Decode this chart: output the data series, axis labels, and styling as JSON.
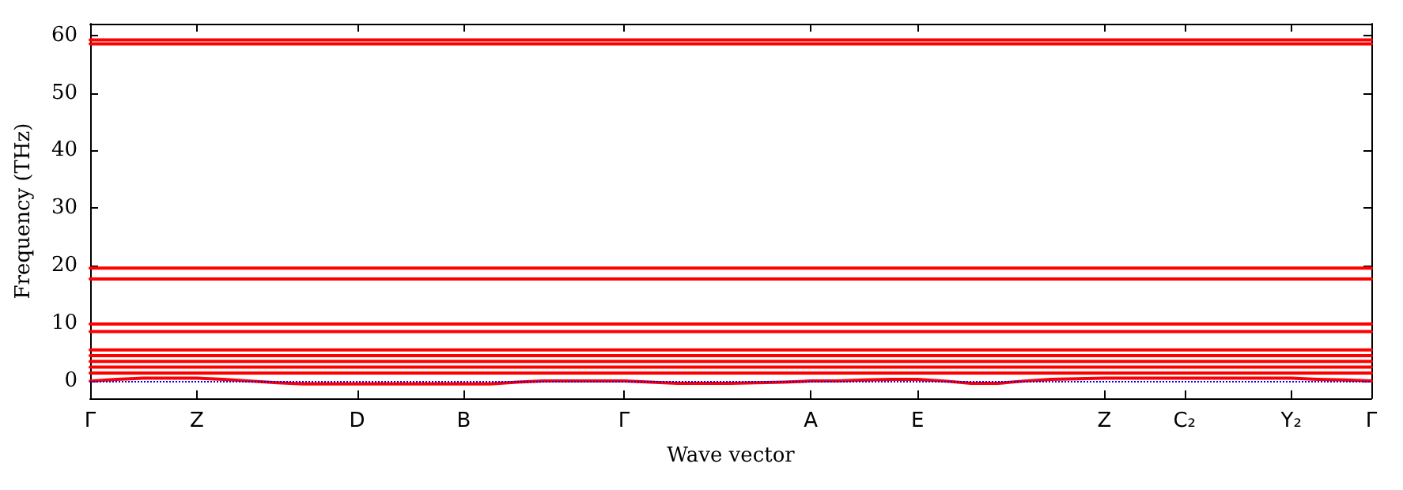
{
  "chart_data": {
    "type": "line",
    "xlabel": "Wave vector",
    "ylabel": "Frequency (THz)",
    "categories": [
      "Γ",
      null,
      null,
      null,
      "Z",
      null,
      null,
      null,
      null,
      null,
      "D",
      null,
      null,
      null,
      "B",
      null,
      null,
      null,
      null,
      null,
      "Γ",
      null,
      null,
      null,
      null,
      null,
      null,
      "A",
      null,
      null,
      null,
      "E",
      null,
      null,
      null,
      null,
      null,
      null,
      "Z",
      null,
      null,
      "C₂",
      null,
      null,
      null,
      "Y₂",
      null,
      null,
      "Γ"
    ],
    "ylim": [
      -3,
      62
    ],
    "yticks": [
      0,
      10,
      20,
      30,
      40,
      50,
      60
    ],
    "marker": "none",
    "line_style": "solid",
    "grid": false,
    "ref_lines": [
      {
        "axis": "y",
        "value": 0,
        "color": "#0000ff",
        "line_style": "dotted"
      }
    ],
    "series": [
      {
        "color": "#ff0000",
        "values": [
          58.5,
          58.5,
          58.5,
          58.5,
          58.5,
          58.5,
          58.5,
          58.5,
          58.5,
          58.5,
          58.5,
          58.5,
          58.5,
          58.5,
          58.5,
          58.5,
          58.5,
          58.5,
          58.5,
          58.5,
          58.5,
          58.5,
          58.5,
          58.5,
          58.5,
          58.5,
          58.5,
          58.5,
          58.5,
          58.5,
          58.5,
          58.5,
          58.5,
          58.5,
          58.5,
          58.5,
          58.5,
          58.5,
          58.5,
          58.5,
          58.5,
          58.5,
          58.5,
          58.5,
          58.5,
          58.5,
          58.5,
          58.5,
          58.5
        ]
      },
      {
        "color": "#ff0000",
        "values": [
          59.2,
          59.2,
          59.2,
          59.2,
          59.2,
          59.2,
          59.2,
          59.2,
          59.2,
          59.2,
          59.2,
          59.2,
          59.2,
          59.2,
          59.2,
          59.2,
          59.2,
          59.2,
          59.2,
          59.2,
          59.2,
          59.2,
          59.2,
          59.2,
          59.2,
          59.2,
          59.2,
          59.2,
          59.2,
          59.2,
          59.2,
          59.2,
          59.2,
          59.2,
          59.2,
          59.2,
          59.2,
          59.2,
          59.2,
          59.2,
          59.2,
          59.2,
          59.2,
          59.2,
          59.2,
          59.2,
          59.2,
          59.2,
          59.2
        ]
      },
      {
        "color": "#ff0000",
        "values": [
          19.6,
          19.6,
          19.6,
          19.6,
          19.6,
          19.6,
          19.6,
          19.6,
          19.6,
          19.6,
          19.6,
          19.6,
          19.6,
          19.6,
          19.6,
          19.6,
          19.6,
          19.6,
          19.6,
          19.6,
          19.6,
          19.6,
          19.6,
          19.6,
          19.6,
          19.6,
          19.6,
          19.6,
          19.6,
          19.6,
          19.6,
          19.6,
          19.6,
          19.6,
          19.6,
          19.6,
          19.6,
          19.6,
          19.6,
          19.6,
          19.6,
          19.6,
          19.6,
          19.6,
          19.6,
          19.6,
          19.6,
          19.6,
          19.6
        ]
      },
      {
        "color": "#ff0000",
        "values": [
          17.7,
          17.7,
          17.7,
          17.7,
          17.7,
          17.7,
          17.7,
          17.7,
          17.7,
          17.7,
          17.7,
          17.7,
          17.7,
          17.7,
          17.7,
          17.7,
          17.7,
          17.7,
          17.7,
          17.7,
          17.7,
          17.7,
          17.7,
          17.7,
          17.7,
          17.7,
          17.7,
          17.7,
          17.7,
          17.7,
          17.7,
          17.7,
          17.7,
          17.7,
          17.7,
          17.7,
          17.7,
          17.7,
          17.7,
          17.7,
          17.7,
          17.7,
          17.7,
          17.7,
          17.7,
          17.7,
          17.7,
          17.7,
          17.7
        ]
      },
      {
        "color": "#ff0000",
        "values": [
          9.9,
          9.9,
          9.9,
          9.9,
          9.9,
          9.9,
          9.9,
          9.9,
          9.9,
          9.9,
          9.9,
          9.9,
          9.9,
          9.9,
          9.9,
          9.9,
          9.9,
          9.9,
          9.9,
          9.9,
          9.9,
          9.9,
          9.9,
          9.9,
          9.9,
          9.9,
          9.9,
          9.9,
          9.9,
          9.9,
          9.9,
          9.9,
          9.9,
          9.9,
          9.9,
          9.9,
          9.9,
          9.9,
          9.9,
          9.9,
          9.9,
          9.9,
          9.9,
          9.9,
          9.9,
          9.9,
          9.9,
          9.9,
          9.9
        ]
      },
      {
        "color": "#ff0000",
        "values": [
          8.6,
          8.6,
          8.6,
          8.6,
          8.6,
          8.6,
          8.6,
          8.6,
          8.6,
          8.6,
          8.6,
          8.6,
          8.6,
          8.6,
          8.6,
          8.6,
          8.6,
          8.6,
          8.6,
          8.6,
          8.6,
          8.6,
          8.6,
          8.6,
          8.6,
          8.6,
          8.6,
          8.6,
          8.6,
          8.6,
          8.6,
          8.6,
          8.6,
          8.6,
          8.6,
          8.6,
          8.6,
          8.6,
          8.6,
          8.6,
          8.6,
          8.6,
          8.6,
          8.6,
          8.6,
          8.6,
          8.6,
          8.6,
          8.6
        ]
      },
      {
        "color": "#ff0000",
        "values": [
          5.4,
          5.4,
          5.4,
          5.4,
          5.4,
          5.4,
          5.4,
          5.4,
          5.4,
          5.4,
          5.4,
          5.4,
          5.4,
          5.4,
          5.4,
          5.4,
          5.4,
          5.4,
          5.4,
          5.4,
          5.4,
          5.4,
          5.4,
          5.4,
          5.4,
          5.4,
          5.4,
          5.4,
          5.4,
          5.4,
          5.4,
          5.4,
          5.4,
          5.4,
          5.4,
          5.4,
          5.4,
          5.4,
          5.4,
          5.4,
          5.4,
          5.4,
          5.4,
          5.4,
          5.4,
          5.4,
          5.4,
          5.4,
          5.4
        ]
      },
      {
        "color": "#ff0000",
        "values": [
          4.4,
          4.4,
          4.4,
          4.4,
          4.4,
          4.4,
          4.4,
          4.4,
          4.4,
          4.4,
          4.4,
          4.4,
          4.4,
          4.4,
          4.4,
          4.4,
          4.4,
          4.4,
          4.4,
          4.4,
          4.4,
          4.4,
          4.4,
          4.4,
          4.4,
          4.4,
          4.4,
          4.4,
          4.4,
          4.4,
          4.4,
          4.4,
          4.4,
          4.4,
          4.4,
          4.4,
          4.4,
          4.4,
          4.4,
          4.4,
          4.4,
          4.4,
          4.4,
          4.4,
          4.4,
          4.4,
          4.4,
          4.4,
          4.4
        ]
      },
      {
        "color": "#ff0000",
        "values": [
          3.4,
          3.4,
          3.4,
          3.4,
          3.4,
          3.4,
          3.4,
          3.4,
          3.4,
          3.4,
          3.4,
          3.4,
          3.4,
          3.4,
          3.4,
          3.4,
          3.4,
          3.4,
          3.4,
          3.4,
          3.4,
          3.4,
          3.4,
          3.4,
          3.4,
          3.4,
          3.4,
          3.4,
          3.4,
          3.4,
          3.4,
          3.4,
          3.4,
          3.4,
          3.4,
          3.4,
          3.4,
          3.4,
          3.4,
          3.4,
          3.4,
          3.4,
          3.4,
          3.4,
          3.4,
          3.4,
          3.4,
          3.4,
          3.4
        ]
      },
      {
        "color": "#ff0000",
        "values": [
          2.4,
          2.4,
          2.4,
          2.4,
          2.4,
          2.4,
          2.4,
          2.4,
          2.4,
          2.4,
          2.4,
          2.4,
          2.4,
          2.4,
          2.4,
          2.4,
          2.4,
          2.4,
          2.4,
          2.4,
          2.4,
          2.4,
          2.4,
          2.4,
          2.4,
          2.4,
          2.4,
          2.4,
          2.4,
          2.4,
          2.4,
          2.4,
          2.4,
          2.4,
          2.4,
          2.4,
          2.4,
          2.4,
          2.4,
          2.4,
          2.4,
          2.4,
          2.4,
          2.4,
          2.4,
          2.4,
          2.4,
          2.4,
          2.4
        ]
      },
      {
        "color": "#ff0000",
        "values": [
          1.4,
          1.4,
          1.4,
          1.4,
          1.4,
          1.4,
          1.4,
          1.4,
          1.4,
          1.4,
          1.4,
          1.4,
          1.4,
          1.4,
          1.4,
          1.4,
          1.4,
          1.4,
          1.4,
          1.4,
          1.4,
          1.4,
          1.4,
          1.4,
          1.4,
          1.4,
          1.4,
          1.4,
          1.4,
          1.4,
          1.4,
          1.4,
          1.4,
          1.4,
          1.4,
          1.4,
          1.4,
          1.4,
          1.4,
          1.4,
          1.4,
          1.4,
          1.4,
          1.4,
          1.4,
          1.4,
          1.4,
          1.4,
          1.4
        ]
      },
      {
        "color": "#ff0000",
        "values": [
          0,
          0.3,
          0.5,
          0.5,
          0.5,
          0.3,
          0,
          -0.3,
          -0.5,
          -0.5,
          -0.5,
          -0.5,
          -0.5,
          -0.5,
          -0.5,
          -0.5,
          -0.2,
          0,
          0,
          0,
          0,
          -0.2,
          -0.4,
          -0.4,
          -0.4,
          -0.3,
          -0.2,
          0,
          0,
          0.2,
          0.3,
          0.3,
          0,
          -0.4,
          -0.4,
          0,
          0.3,
          0.4,
          0.5,
          0.5,
          0.5,
          0.5,
          0.5,
          0.5,
          0.5,
          0.5,
          0.3,
          0.2,
          0
        ]
      }
    ]
  }
}
